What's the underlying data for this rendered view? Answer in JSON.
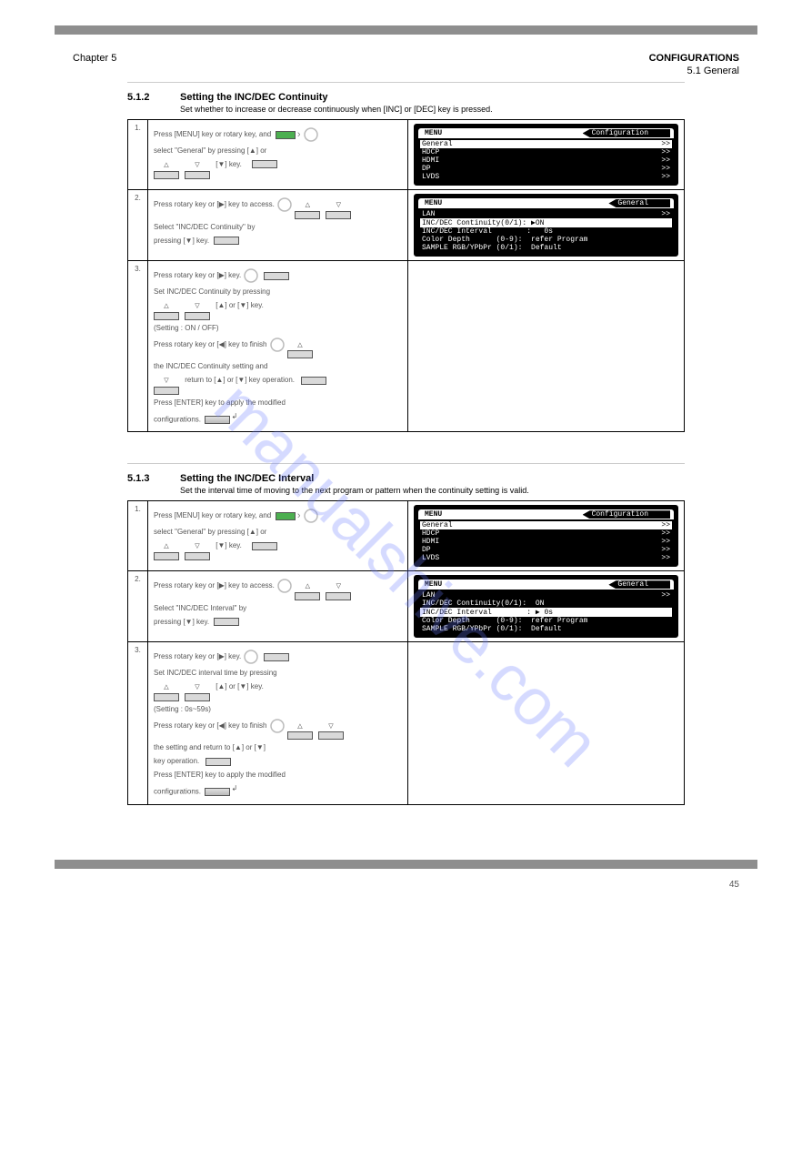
{
  "header": {
    "chapter": "Chapter 5",
    "chapter_title": "CONFIGURATIONS",
    "subtitle": "5.1  General"
  },
  "watermark": "manualshive.com",
  "section1": {
    "num": "5.1.2",
    "title": "Setting the INC/DEC Continuity",
    "desc": "Set whether to increase or decrease continuously when [INC] or [DEC] key is pressed.",
    "steps": [
      {
        "n": "1.",
        "instr_lines": [
          "Press [MENU] key or rotary key, and",
          "select \"General\" by pressing [▲] or",
          "[▼] key."
        ],
        "menu": {
          "title": "Configuration",
          "selected": 0,
          "rows": [
            {
              "l": "General",
              "r": ">>"
            },
            {
              "l": "HDCP",
              "r": ">>"
            },
            {
              "l": "HDMI",
              "r": ">>"
            },
            {
              "l": "DP",
              "r": ">>"
            },
            {
              "l": "LVDS",
              "r": ">>"
            }
          ]
        }
      },
      {
        "n": "2.",
        "instr_lines": [
          "Press rotary key or [▶] key to access.",
          "Select \"INC/DEC Continuity\" by",
          "pressing [▼] key."
        ],
        "menu": {
          "title": "General",
          "selected": 1,
          "rows": [
            {
              "l": "LAN",
              "r": ">>"
            },
            {
              "l": "INC/DEC Continuity(0/1): ▶ON",
              "r": ""
            },
            {
              "l": "INC/DEC Interval        :   0s",
              "r": ""
            },
            {
              "l": "Color Depth      (0-9):  refer Program",
              "r": ""
            },
            {
              "l": "SAMPLE RGB/YPbPr (0/1):  Default",
              "r": ""
            }
          ]
        }
      },
      {
        "n": "3.",
        "instr_lines": [
          "Press rotary key or [▶] key.",
          "Set INC/DEC Continuity by pressing",
          "[▲] or [▼] key.",
          "(Setting : ON / OFF)",
          "Press rotary key or [◀] key to finish",
          "the INC/DEC Continuity setting and",
          "return to [▲] or [▼] key operation.",
          "Press [ENTER] key to apply the modified",
          "configurations."
        ]
      }
    ]
  },
  "section2": {
    "num": "5.1.3",
    "title": "Setting the INC/DEC Interval",
    "desc": "Set the interval time of moving to the next program or pattern when the continuity setting is valid.",
    "steps": [
      {
        "n": "1.",
        "instr_lines": [
          "Press [MENU] key or rotary key, and",
          "select \"General\" by pressing [▲] or",
          "[▼] key."
        ],
        "menu": {
          "title": "Configuration",
          "selected": 0,
          "rows": [
            {
              "l": "General",
              "r": ">>"
            },
            {
              "l": "HDCP",
              "r": ">>"
            },
            {
              "l": "HDMI",
              "r": ">>"
            },
            {
              "l": "DP",
              "r": ">>"
            },
            {
              "l": "LVDS",
              "r": ">>"
            }
          ]
        }
      },
      {
        "n": "2.",
        "instr_lines": [
          "Press rotary key or [▶] key to access.",
          "Select \"INC/DEC Interval\" by",
          "pressing [▼] key."
        ],
        "menu": {
          "title": "General",
          "selected": 2,
          "rows": [
            {
              "l": "LAN",
              "r": ">>"
            },
            {
              "l": "INC/DEC Continuity(0/1):  ON",
              "r": ""
            },
            {
              "l": "INC/DEC Interval        : ▶ 0s",
              "r": ""
            },
            {
              "l": "Color Depth      (0-9):  refer Program",
              "r": ""
            },
            {
              "l": "SAMPLE RGB/YPbPr (0/1):  Default",
              "r": ""
            }
          ]
        }
      },
      {
        "n": "3.",
        "instr_lines": [
          "Press rotary key or [▶] key.",
          "Set INC/DEC interval time by pressing",
          "[▲] or [▼] key.",
          "(Setting : 0s~59s)",
          "Press rotary key or [◀] key to finish",
          "the setting and return to [▲] or [▼]",
          "key operation.",
          "Press [ENTER] key to apply the modified",
          "configurations."
        ]
      }
    ]
  },
  "footer": {
    "page": "45"
  }
}
